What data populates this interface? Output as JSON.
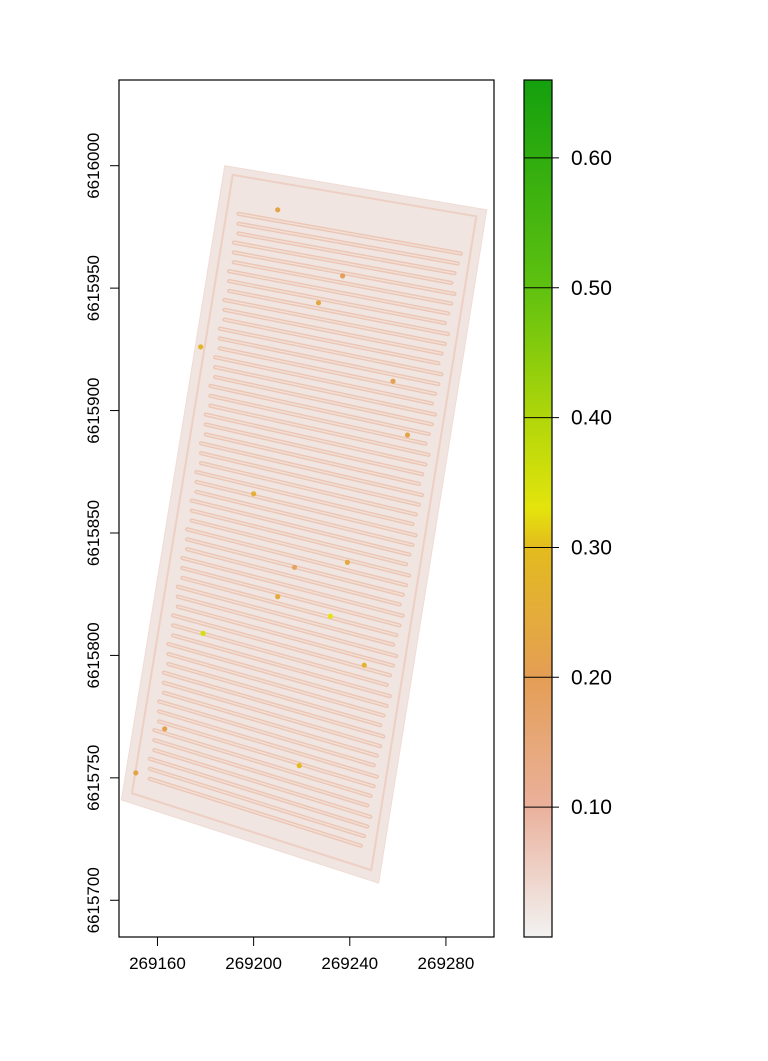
{
  "chart_data": {
    "type": "heatmap",
    "title": "",
    "xlabel": "",
    "ylabel": "",
    "xlim": [
      269144,
      269300
    ],
    "ylim": [
      6615685,
      6616035
    ],
    "x_ticks": [
      269160,
      269200,
      269240,
      269280
    ],
    "x_tick_labels": [
      "269160",
      "269200",
      "269240",
      "269280"
    ],
    "y_ticks": [
      6615700,
      6615750,
      6615800,
      6615850,
      6615900,
      6615950,
      6616000
    ],
    "y_tick_labels": [
      "6615700",
      "6615750",
      "6615800",
      "6615850",
      "6615900",
      "6615950",
      "6616000"
    ],
    "raster_corners": [
      [
        269188,
        6616000
      ],
      [
        269297,
        6615982
      ],
      [
        269252,
        6615707
      ],
      [
        269145,
        6615741
      ]
    ],
    "raster_description_values": {
      "background_value": 0.02,
      "row_value": 0.12,
      "row_count": 60
    },
    "hotspots": [
      {
        "x": 269210,
        "y": 6615824,
        "value": 0.25
      },
      {
        "x": 269219,
        "y": 6615755,
        "value": 0.3
      },
      {
        "x": 269151,
        "y": 6615752,
        "value": 0.22
      },
      {
        "x": 269246,
        "y": 6615796,
        "value": 0.27
      },
      {
        "x": 269239,
        "y": 6615838,
        "value": 0.24
      },
      {
        "x": 269200,
        "y": 6615866,
        "value": 0.26
      },
      {
        "x": 269178,
        "y": 6615926,
        "value": 0.28
      },
      {
        "x": 269227,
        "y": 6615944,
        "value": 0.23
      },
      {
        "x": 269264,
        "y": 6615890,
        "value": 0.22
      },
      {
        "x": 269258,
        "y": 6615912,
        "value": 0.21
      },
      {
        "x": 269210,
        "y": 6615982,
        "value": 0.22
      },
      {
        "x": 269237,
        "y": 6615955,
        "value": 0.2
      },
      {
        "x": 269179,
        "y": 6615809,
        "value": 0.35
      },
      {
        "x": 269217,
        "y": 6615836,
        "value": 0.18
      },
      {
        "x": 269232,
        "y": 6615816,
        "value": 0.33
      },
      {
        "x": 269163,
        "y": 6615770,
        "value": 0.21
      }
    ],
    "legend": {
      "placement": "right",
      "min": 0.0,
      "max": 0.66,
      "ticks": [
        0.1,
        0.2,
        0.3,
        0.4,
        0.5,
        0.6
      ],
      "tick_labels": [
        "0.10",
        "0.20",
        "0.30",
        "0.40",
        "0.50",
        "0.60"
      ],
      "color_stops": [
        {
          "value": 0.0,
          "color": "#f2f2f2"
        },
        {
          "value": 0.1,
          "color": "#eab19c"
        },
        {
          "value": 0.2,
          "color": "#e49e55"
        },
        {
          "value": 0.3,
          "color": "#e3bb1e"
        },
        {
          "value": 0.33,
          "color": "#e4e40c"
        },
        {
          "value": 0.4,
          "color": "#b0d60a"
        },
        {
          "value": 0.5,
          "color": "#5fc110"
        },
        {
          "value": 0.66,
          "color": "#14a00e"
        }
      ]
    }
  }
}
